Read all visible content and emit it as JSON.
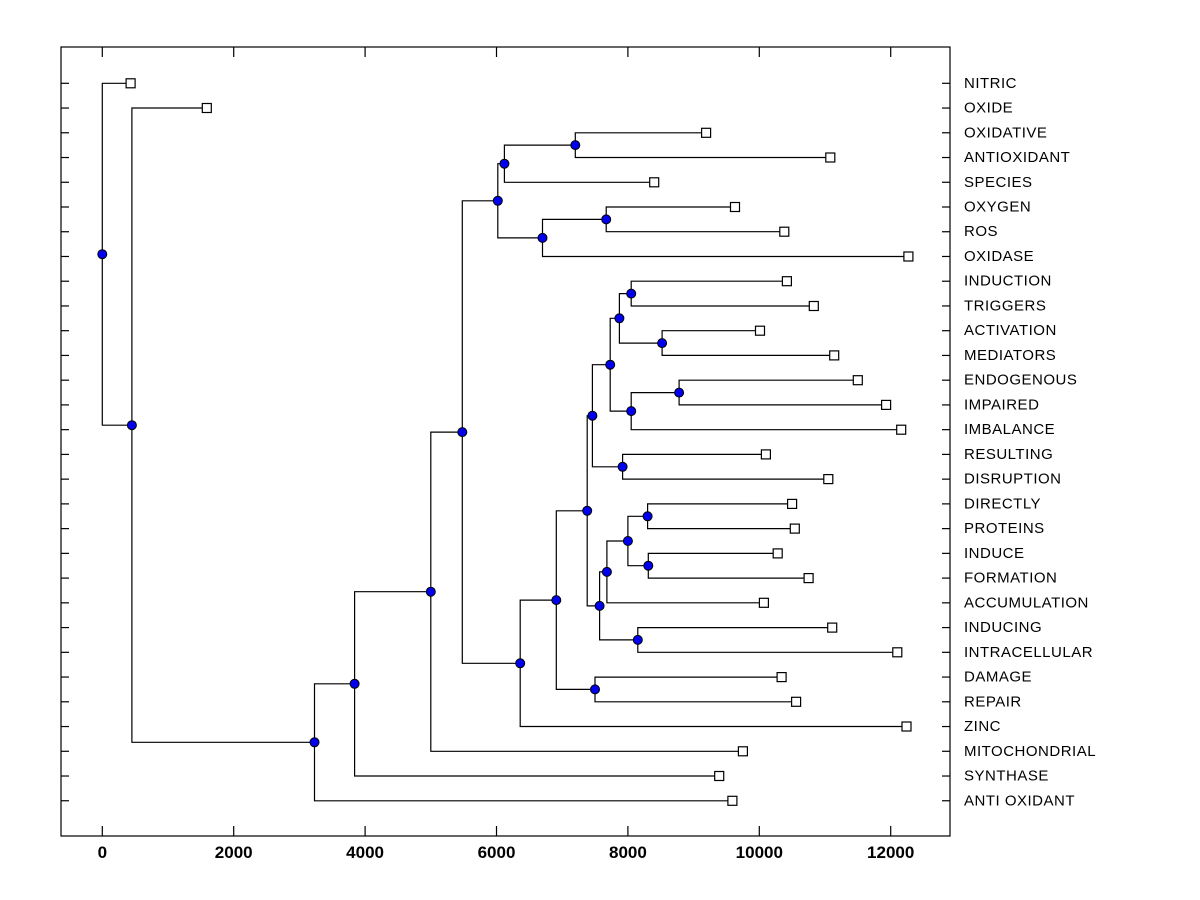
{
  "figure": {
    "background": "#ffffff",
    "title": ""
  },
  "chart_data": {
    "type": "dendrogram",
    "orientation": "horizontal",
    "root_side": "left",
    "leaf_label_side": "right",
    "title": "",
    "xlabel": "",
    "ylabel": "",
    "grid": false,
    "x_ticks": [
      0,
      2000,
      4000,
      6000,
      8000,
      10000,
      12000
    ],
    "x_tick_labels": [
      "0",
      "2000",
      "4000",
      "6000",
      "8000",
      "10000",
      "12000"
    ],
    "x_range_approx": [
      -630,
      12900
    ],
    "line_color": "#000000",
    "marker_styles": {
      "leaf": {
        "shape": "open-square",
        "fill": "#ffffff",
        "stroke": "#000000",
        "size": 9
      },
      "internal": {
        "shape": "filled-circle",
        "fill": "#0000ee",
        "stroke": "#000000",
        "diameter": 9
      }
    },
    "leaves": [
      {
        "label": "NITRIC",
        "value": 430
      },
      {
        "label": "OXIDE",
        "value": 1590
      },
      {
        "label": "OXIDATIVE",
        "value": 9190
      },
      {
        "label": "ANTIOXIDANT",
        "value": 11080
      },
      {
        "label": "SPECIES",
        "value": 8400
      },
      {
        "label": "OXYGEN",
        "value": 9630
      },
      {
        "label": "ROS",
        "value": 10380
      },
      {
        "label": "OXIDASE",
        "value": 12270
      },
      {
        "label": "INDUCTION",
        "value": 10420
      },
      {
        "label": "TRIGGERS",
        "value": 10830
      },
      {
        "label": "ACTIVATION",
        "value": 10010
      },
      {
        "label": "MEDIATORS",
        "value": 11140
      },
      {
        "label": "ENDOGENOUS",
        "value": 11500
      },
      {
        "label": "IMPAIRED",
        "value": 11930
      },
      {
        "label": "IMBALANCE",
        "value": 12160
      },
      {
        "label": "RESULTING",
        "value": 10100
      },
      {
        "label": "DISRUPTION",
        "value": 11050
      },
      {
        "label": "DIRECTLY",
        "value": 10500
      },
      {
        "label": "PROTEINS",
        "value": 10540
      },
      {
        "label": "INDUCE",
        "value": 10280
      },
      {
        "label": "FORMATION",
        "value": 10750
      },
      {
        "label": "ACCUMULATION",
        "value": 10070
      },
      {
        "label": "INDUCING",
        "value": 11110
      },
      {
        "label": "INTRACELLULAR",
        "value": 12100
      },
      {
        "label": "DAMAGE",
        "value": 10340
      },
      {
        "label": "REPAIR",
        "value": 10560
      },
      {
        "label": "ZINC",
        "value": 12240
      },
      {
        "label": "MITOCHONDRIAL",
        "value": 9750
      },
      {
        "label": "SYNTHASE",
        "value": 9390
      },
      {
        "label": "ANTI OXIDANT",
        "value": 9590
      }
    ],
    "merges": [
      {
        "id": "A",
        "children": [
          "L2",
          "L3"
        ],
        "value": 7200
      },
      {
        "id": "B",
        "children": [
          "A",
          "L4"
        ],
        "value": 6120
      },
      {
        "id": "D",
        "children": [
          "L5",
          "L6"
        ],
        "value": 7670
      },
      {
        "id": "E",
        "children": [
          "D",
          "L7"
        ],
        "value": 6700
      },
      {
        "id": "C",
        "children": [
          "B",
          "E"
        ],
        "value": 6020
      },
      {
        "id": "F",
        "children": [
          "L8",
          "L9"
        ],
        "value": 8050
      },
      {
        "id": "H",
        "children": [
          "L10",
          "L11"
        ],
        "value": 8520
      },
      {
        "id": "G",
        "children": [
          "F",
          "H"
        ],
        "value": 7870
      },
      {
        "id": "J",
        "children": [
          "L12",
          "L13"
        ],
        "value": 8780
      },
      {
        "id": "K",
        "children": [
          "J",
          "L14"
        ],
        "value": 8050
      },
      {
        "id": "I",
        "children": [
          "G",
          "K"
        ],
        "value": 7730
      },
      {
        "id": "M",
        "children": [
          "L15",
          "L16"
        ],
        "value": 7920
      },
      {
        "id": "LN",
        "children": [
          "I",
          "M"
        ],
        "value": 7460
      },
      {
        "id": "R",
        "children": [
          "L17",
          "L18"
        ],
        "value": 8300
      },
      {
        "id": "T",
        "children": [
          "L19",
          "L20"
        ],
        "value": 8310
      },
      {
        "id": "S",
        "children": [
          "R",
          "T"
        ],
        "value": 8000
      },
      {
        "id": "U",
        "children": [
          "S",
          "L21"
        ],
        "value": 7680
      },
      {
        "id": "W",
        "children": [
          "L22",
          "L23"
        ],
        "value": 8150
      },
      {
        "id": "V",
        "children": [
          "U",
          "W"
        ],
        "value": 7570
      },
      {
        "id": "P",
        "children": [
          "LN",
          "V"
        ],
        "value": 7380
      },
      {
        "id": "DR",
        "children": [
          "L24",
          "L25"
        ],
        "value": 7500
      },
      {
        "id": "X",
        "children": [
          "P",
          "DR"
        ],
        "value": 6910
      },
      {
        "id": "N7",
        "children": [
          "X",
          "L26"
        ],
        "value": 6360
      },
      {
        "id": "N6",
        "children": [
          "C",
          "N7"
        ],
        "value": 5480
      },
      {
        "id": "N5",
        "children": [
          "N6",
          "L27"
        ],
        "value": 5000
      },
      {
        "id": "N4",
        "children": [
          "N5",
          "L28"
        ],
        "value": 3840
      },
      {
        "id": "N3",
        "children": [
          "N4",
          "L29"
        ],
        "value": 3230
      },
      {
        "id": "N2",
        "children": [
          "L1",
          "N3"
        ],
        "value": 450
      },
      {
        "id": "ROOT",
        "children": [
          "L0",
          "N2"
        ],
        "value": 0
      }
    ]
  }
}
